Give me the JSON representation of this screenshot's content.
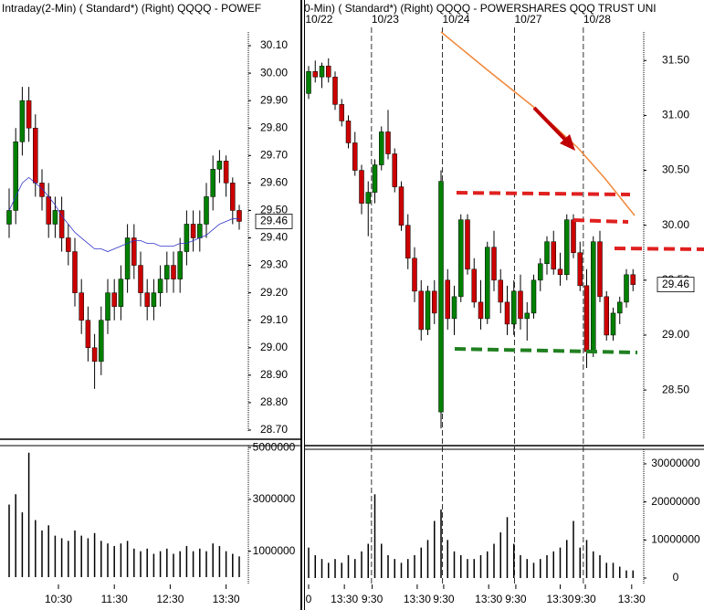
{
  "chart_data": [
    {
      "type": "candlestick",
      "title": "Intraday(2-Min) ( Standard*)    (Right)    QQQQ - POWEF",
      "open": [
        29.45,
        29.5,
        29.75,
        29.9,
        29.8,
        29.6,
        29.55,
        29.45,
        29.5,
        29.4,
        29.35,
        29.2,
        29.1,
        29.0,
        28.95,
        29.1,
        29.2,
        29.15,
        29.25,
        29.4,
        29.3,
        29.2,
        29.15,
        29.2,
        29.25,
        29.3,
        29.25,
        29.35,
        29.45,
        29.4,
        29.45,
        29.55,
        29.65,
        29.68,
        29.6,
        29.5
      ],
      "high": [
        29.58,
        29.8,
        29.95,
        29.95,
        29.85,
        29.65,
        29.6,
        29.55,
        29.55,
        29.45,
        29.4,
        29.25,
        29.15,
        29.05,
        29.15,
        29.25,
        29.25,
        29.3,
        29.45,
        29.45,
        29.35,
        29.25,
        29.25,
        29.3,
        29.35,
        29.35,
        29.4,
        29.5,
        29.5,
        29.5,
        29.6,
        29.7,
        29.72,
        29.7,
        29.62,
        29.52
      ],
      "low": [
        29.4,
        29.45,
        29.7,
        29.75,
        29.55,
        29.5,
        29.4,
        29.4,
        29.35,
        29.3,
        29.15,
        29.05,
        28.95,
        28.85,
        28.9,
        29.05,
        29.1,
        29.1,
        29.2,
        29.25,
        29.15,
        29.1,
        29.1,
        29.15,
        29.2,
        29.2,
        29.2,
        29.3,
        29.35,
        29.35,
        29.4,
        29.5,
        29.6,
        29.55,
        29.45,
        29.43
      ],
      "close": [
        29.5,
        29.75,
        29.9,
        29.8,
        29.6,
        29.55,
        29.45,
        29.5,
        29.4,
        29.35,
        29.2,
        29.1,
        29.0,
        28.95,
        29.1,
        29.2,
        29.15,
        29.25,
        29.4,
        29.3,
        29.2,
        29.15,
        29.2,
        29.25,
        29.3,
        29.25,
        29.35,
        29.45,
        29.4,
        29.45,
        29.55,
        29.65,
        29.68,
        29.6,
        29.5,
        29.46
      ],
      "ma": [
        29.5,
        29.55,
        29.6,
        29.62,
        29.6,
        29.58,
        29.55,
        29.52,
        29.48,
        29.45,
        29.42,
        29.4,
        29.38,
        29.36,
        29.36,
        29.35,
        29.36,
        29.37,
        29.38,
        29.39,
        29.39,
        29.38,
        29.38,
        29.37,
        29.37,
        29.37,
        29.38,
        29.38,
        29.39,
        29.4,
        29.41,
        29.43,
        29.45,
        29.46,
        29.47,
        29.47
      ],
      "volume": [
        2800000,
        3200000,
        2500000,
        4800000,
        2200000,
        1800000,
        2000000,
        1600000,
        1500000,
        1400000,
        1800000,
        1600000,
        1500000,
        1700000,
        1400000,
        1300000,
        1200000,
        1300000,
        1400000,
        1100000,
        1000000,
        1100000,
        900000,
        1000000,
        1100000,
        900000,
        1000000,
        1200000,
        1000000,
        1100000,
        1000000,
        1300000,
        1200000,
        1000000,
        900000,
        800000
      ],
      "ylim": [
        28.67,
        30.15
      ],
      "yticks": [
        {
          "value": 30.1,
          "label": "30.10"
        },
        {
          "value": 30.0,
          "label": "30.00"
        },
        {
          "value": 29.9,
          "label": "29.90"
        },
        {
          "value": 29.8,
          "label": "29.80"
        },
        {
          "value": 29.7,
          "label": "29.70"
        },
        {
          "value": 29.6,
          "label": "29.60"
        },
        {
          "value": 29.5,
          "label": "29.50"
        },
        {
          "value": 29.4,
          "label": "29.40"
        },
        {
          "value": 29.3,
          "label": "29.30"
        },
        {
          "value": 29.2,
          "label": "29.20"
        },
        {
          "value": 29.1,
          "label": "29.10"
        },
        {
          "value": 29.0,
          "label": "29.00"
        },
        {
          "value": 28.9,
          "label": "28.90"
        },
        {
          "value": 28.8,
          "label": "28.80"
        },
        {
          "value": 28.7,
          "label": "28.70"
        }
      ],
      "last_price": {
        "value": 29.46,
        "label": "29.46"
      },
      "volume_ylim": [
        0,
        5180000
      ],
      "volume_yticks": [
        5000000,
        3000000,
        1000000
      ],
      "xticks": [
        {
          "value": 7.5,
          "label": "10:30"
        },
        {
          "value": 16,
          "label": "11:30"
        },
        {
          "value": 24.5,
          "label": "12:30"
        },
        {
          "value": 33,
          "label": "13:30"
        }
      ],
      "up_color": "#008000",
      "down_color": "#cc0000",
      "ma_color": "#3333cc"
    },
    {
      "type": "candlestick",
      "title": "0-Min) ( Standard*)    (Right)    QQQQ - POWERSHARES QQQ TRUST UNI",
      "open": [
        31.2,
        31.4,
        31.35,
        31.45,
        31.35,
        31.1,
        30.95,
        30.75,
        30.5,
        30.2,
        30.3,
        30.55,
        30.85,
        30.65,
        30.35,
        30.0,
        29.7,
        29.4,
        29.05,
        29.4,
        28.3,
        29.5,
        29.15,
        29.35,
        30.05,
        29.6,
        29.3,
        29.15,
        29.8,
        29.5,
        29.3,
        29.1,
        29.4,
        29.15,
        29.2,
        29.5,
        29.65,
        29.85,
        29.6,
        29.55,
        30.05,
        29.75,
        29.45,
        28.85,
        29.85,
        29.35,
        29.0,
        29.2,
        29.3,
        29.55
      ],
      "high": [
        31.45,
        31.5,
        31.48,
        31.52,
        31.4,
        31.15,
        31.0,
        30.85,
        30.55,
        30.4,
        30.6,
        30.9,
        31.05,
        30.7,
        30.4,
        30.1,
        29.8,
        29.5,
        29.45,
        29.5,
        30.5,
        29.6,
        29.45,
        30.1,
        30.1,
        29.7,
        29.5,
        29.85,
        29.95,
        29.6,
        29.45,
        29.5,
        29.55,
        29.3,
        29.55,
        29.7,
        29.9,
        29.95,
        29.75,
        30.1,
        30.1,
        29.85,
        29.6,
        29.9,
        29.95,
        29.4,
        29.25,
        29.35,
        29.6,
        29.6
      ],
      "low": [
        31.15,
        31.3,
        31.25,
        31.3,
        31.05,
        30.9,
        30.7,
        30.45,
        30.1,
        29.9,
        30.2,
        30.5,
        30.6,
        30.3,
        29.95,
        29.6,
        29.3,
        28.95,
        29.0,
        29.1,
        28.15,
        29.05,
        29.0,
        29.3,
        29.55,
        29.25,
        29.05,
        29.1,
        29.4,
        29.2,
        29.0,
        29.0,
        29.05,
        28.95,
        29.15,
        29.4,
        29.55,
        29.55,
        29.45,
        29.5,
        29.7,
        29.4,
        28.7,
        28.8,
        29.3,
        28.95,
        28.95,
        29.1,
        29.25,
        29.4
      ],
      "close": [
        31.4,
        31.35,
        31.45,
        31.35,
        31.1,
        30.95,
        30.75,
        30.5,
        30.2,
        30.3,
        30.55,
        30.85,
        30.65,
        30.35,
        30.0,
        29.7,
        29.4,
        29.05,
        29.4,
        29.2,
        30.4,
        29.15,
        29.35,
        30.05,
        29.6,
        29.3,
        29.15,
        29.8,
        29.5,
        29.3,
        29.1,
        29.4,
        29.15,
        29.2,
        29.5,
        29.65,
        29.85,
        29.6,
        29.55,
        30.05,
        29.75,
        29.45,
        28.85,
        29.85,
        29.35,
        29.0,
        29.2,
        29.3,
        29.55,
        29.46
      ],
      "volume": [
        8000000,
        6000000,
        5000000,
        4000000,
        5000000,
        4000000,
        6000000,
        5000000,
        7000000,
        9000000,
        22000000,
        9000000,
        6000000,
        5000000,
        4000000,
        5000000,
        6000000,
        8000000,
        10000000,
        15000000,
        18000000,
        10000000,
        7000000,
        6000000,
        5000000,
        5000000,
        6000000,
        7000000,
        9000000,
        12000000,
        16000000,
        9000000,
        6000000,
        5000000,
        4000000,
        5000000,
        6000000,
        7000000,
        8000000,
        10000000,
        15000000,
        8000000,
        10000000,
        7000000,
        6000000,
        4000000,
        4000000,
        3000000,
        2000000,
        2000000
      ],
      "ylim": [
        28.06,
        31.76
      ],
      "yticks": [
        {
          "value": 31.5,
          "label": "31.50"
        },
        {
          "value": 31.0,
          "label": "31.00"
        },
        {
          "value": 30.5,
          "label": "30.50"
        },
        {
          "value": 30.0,
          "label": "30.00"
        },
        {
          "value": 29.5,
          "label": "29.50"
        },
        {
          "value": 29.0,
          "label": "29.00"
        },
        {
          "value": 28.5,
          "label": "28.50"
        }
      ],
      "last_price": {
        "value": 29.46,
        "label": "29.46"
      },
      "volume_ylim": [
        0,
        34300000
      ],
      "volume_yticks": [
        30000000,
        20000000,
        10000000,
        0
      ],
      "xticks": [
        {
          "value": 0,
          "label": "0"
        },
        {
          "value": 5.4,
          "label": "13:30"
        },
        {
          "value": 9.6,
          "label": "9:30"
        },
        {
          "value": 16.4,
          "label": "13:30"
        },
        {
          "value": 20.4,
          "label": "9:30"
        },
        {
          "value": 27.2,
          "label": "13:30"
        },
        {
          "value": 31.3,
          "label": "9:30"
        },
        {
          "value": 38,
          "label": "13:30"
        },
        {
          "value": 41.8,
          "label": "9:30"
        },
        {
          "value": 48.8,
          "label": "13:30"
        }
      ],
      "session_labels": [
        {
          "value": 0,
          "label": "10/22"
        },
        {
          "value": 10,
          "label": "10/23"
        },
        {
          "value": 20.7,
          "label": "10/24"
        },
        {
          "value": 31.6,
          "label": "10/27"
        },
        {
          "value": 42,
          "label": "10/28"
        }
      ],
      "up_color": "#008000",
      "down_color": "#cc0000"
    }
  ]
}
